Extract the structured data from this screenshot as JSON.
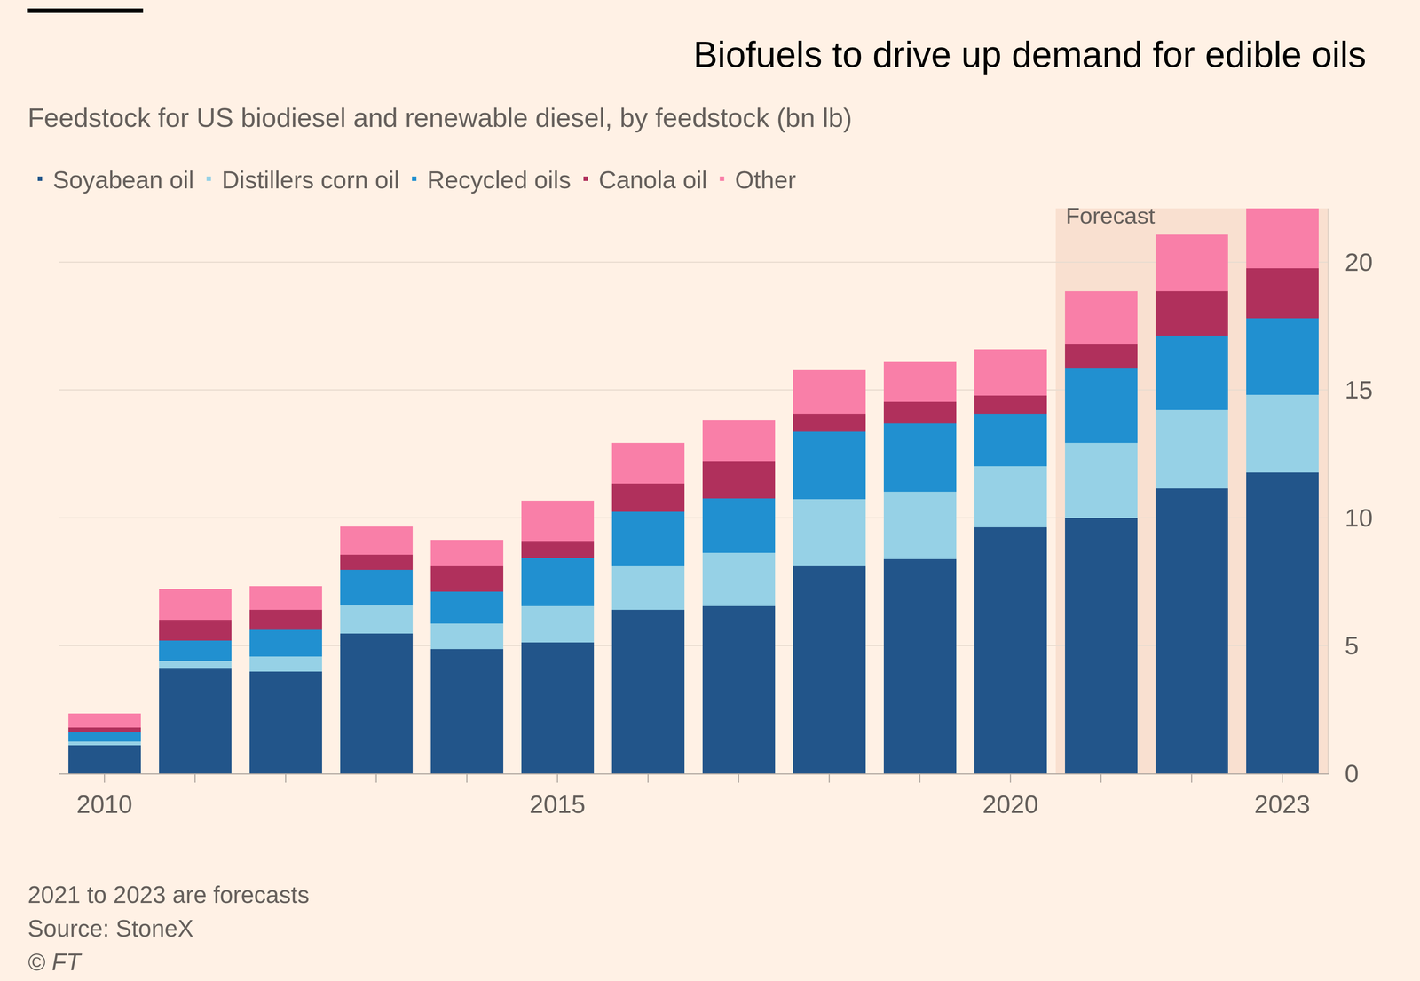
{
  "chart_data": {
    "type": "bar",
    "title": "Biofuels to drive up demand for edible oils",
    "subtitle": "Feedstock for US biodiesel and renewable diesel, by feedstock (bn lb)",
    "stacked": true,
    "grid": true,
    "legend": "top-left",
    "x": [
      2010,
      2011,
      2012,
      2013,
      2014,
      2015,
      2016,
      2017,
      2018,
      2019,
      2020,
      2021,
      2022,
      2023
    ],
    "xlim": [
      2009.5,
      2023.5
    ],
    "xticks": [
      2010,
      2015,
      2020,
      2023
    ],
    "ylim": [
      0,
      22.1
    ],
    "yticks": [
      0,
      5,
      10,
      15,
      20
    ],
    "series": [
      {
        "name": "Soyabean oil",
        "color": "#22558a",
        "values": [
          1.1,
          4.12,
          3.98,
          5.47,
          4.87,
          5.12,
          6.39,
          6.54,
          8.13,
          8.38,
          9.63,
          9.98,
          11.15,
          11.76
        ]
      },
      {
        "name": "Distillers corn oil",
        "color": "#96d1e6",
        "values": [
          0.15,
          0.28,
          0.6,
          1.1,
          0.99,
          1.42,
          1.74,
          2.09,
          2.6,
          2.63,
          2.38,
          2.95,
          3.06,
          3.05
        ]
      },
      {
        "name": "Recycled oils",
        "color": "#2190d0",
        "values": [
          0.35,
          0.79,
          1.03,
          1.39,
          1.24,
          1.88,
          2.1,
          2.13,
          2.63,
          2.67,
          2.06,
          2.91,
          2.91,
          2.99
        ]
      },
      {
        "name": "Canola oil",
        "color": "#b0305c",
        "values": [
          0.2,
          0.81,
          0.78,
          0.6,
          1.03,
          0.67,
          1.1,
          1.46,
          0.71,
          0.85,
          0.71,
          0.93,
          1.74,
          1.95
        ]
      },
      {
        "name": "Other",
        "color": "#f97fa8",
        "values": [
          0.55,
          1.21,
          0.93,
          1.1,
          1.0,
          1.57,
          1.6,
          1.6,
          1.7,
          1.56,
          1.81,
          2.09,
          2.21,
          2.35
        ]
      }
    ],
    "annotations": [
      {
        "text": "Forecast",
        "x0": 2021,
        "x1": 2023
      }
    ],
    "notes": [
      "2021 to 2023 are forecasts",
      "Source: StoneX",
      "© FT"
    ]
  }
}
